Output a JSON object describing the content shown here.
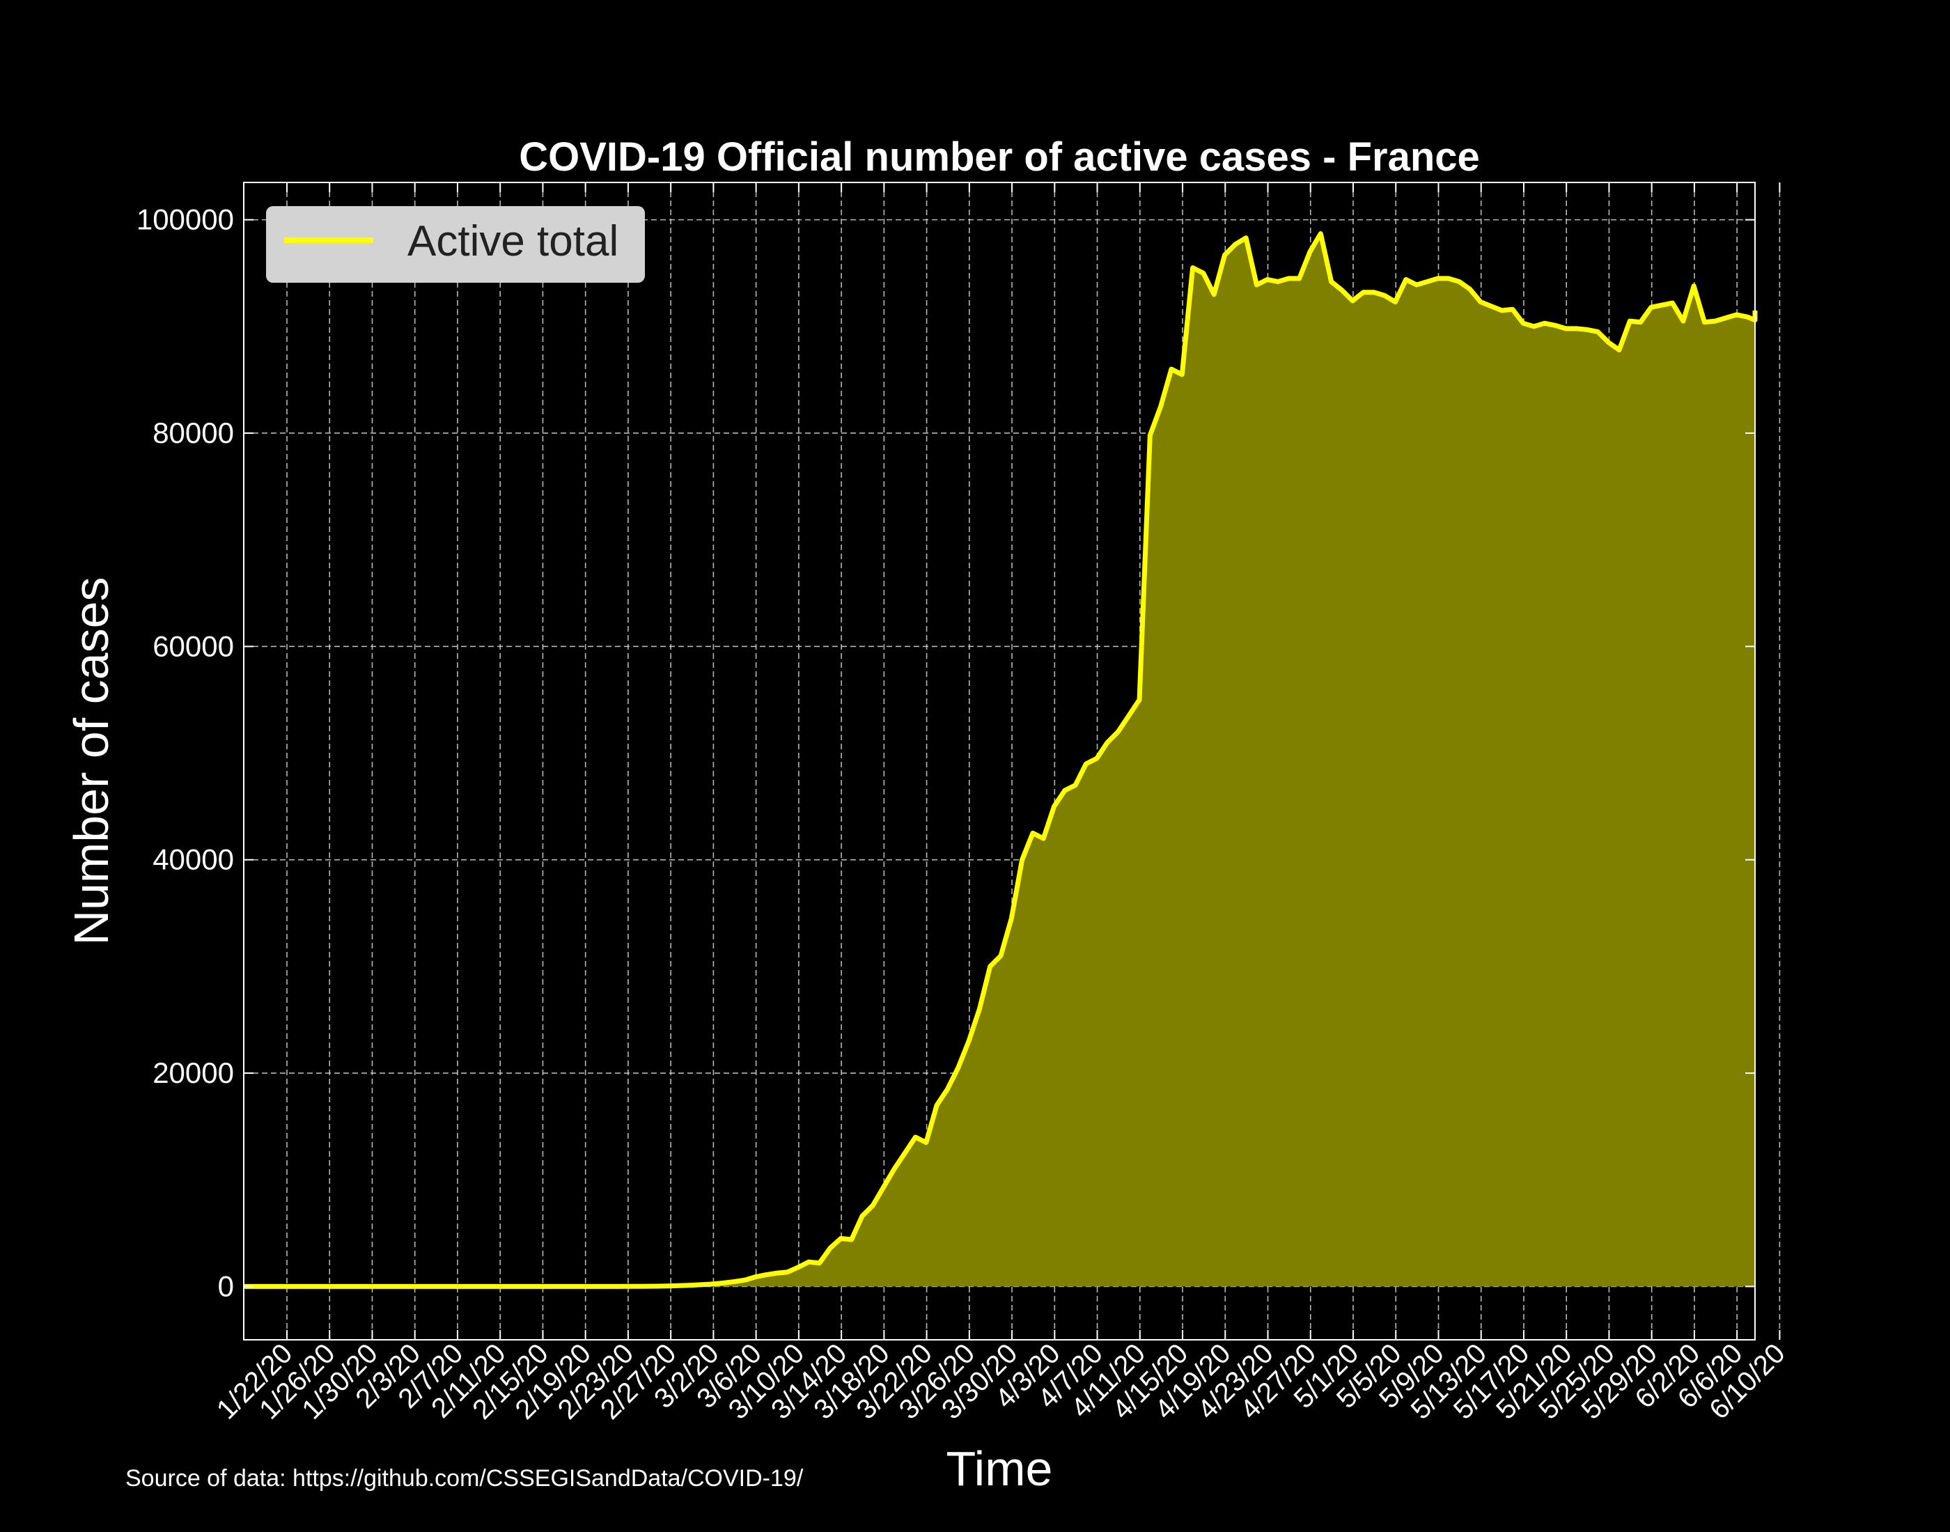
{
  "chart_data": {
    "type": "area",
    "title": "COVID-19 Official number of active cases - France",
    "xlabel": "Time",
    "ylabel": "Number of cases",
    "source_note": "Source of data: https://github.com/CSSEGISandData/COVID-19/",
    "ylim": [
      -5000,
      103500
    ],
    "yticks": [
      0,
      20000,
      40000,
      60000,
      80000,
      100000
    ],
    "ytick_labels": [
      "0",
      "20000",
      "40000",
      "60000",
      "80000",
      "100000"
    ],
    "xticks": [
      "1/22/20",
      "1/26/20",
      "1/30/20",
      "2/3/20",
      "2/7/20",
      "2/11/20",
      "2/15/20",
      "2/19/20",
      "2/23/20",
      "2/27/20",
      "3/2/20",
      "3/6/20",
      "3/10/20",
      "3/14/20",
      "3/18/20",
      "3/22/20",
      "3/26/20",
      "3/30/20",
      "4/3/20",
      "4/7/20",
      "4/11/20",
      "4/15/20",
      "4/19/20",
      "4/23/20",
      "4/27/20",
      "5/1/20",
      "5/5/20",
      "5/9/20",
      "5/13/20",
      "5/17/20",
      "5/21/20",
      "5/25/20",
      "5/29/20",
      "6/2/20",
      "6/6/20",
      "6/10/20"
    ],
    "grid": true,
    "legend_position": "top-left",
    "series": [
      {
        "name": "Active total",
        "color": "#ffff00",
        "fill_color": "#808000",
        "start_date": "1/22/20",
        "end_date": "6/11/20",
        "values": [
          0,
          0,
          2,
          3,
          3,
          3,
          4,
          5,
          5,
          5,
          5,
          5,
          5,
          5,
          5,
          5,
          5,
          5,
          5,
          5,
          5,
          5,
          5,
          5,
          5,
          5,
          5,
          5,
          5,
          5,
          5,
          5,
          5,
          5,
          6,
          6,
          7,
          8,
          20,
          30,
          50,
          80,
          120,
          170,
          230,
          330,
          450,
          600,
          900,
          1100,
          1250,
          1350,
          1800,
          2300,
          2200,
          3600,
          4500,
          4400,
          6600,
          7600,
          9300,
          11000,
          12500,
          14000,
          13500,
          17000,
          18500,
          20500,
          23000,
          26000,
          30000,
          31000,
          34500,
          40000,
          42500,
          42000,
          45000,
          46500,
          47000,
          49000,
          49500,
          51000,
          52000,
          53500,
          55000,
          79800,
          82500,
          86000,
          85500,
          95500,
          95000,
          93000,
          96700,
          97700,
          98300,
          93900,
          94400,
          94200,
          94500,
          94500,
          97000,
          98700,
          94200,
          93400,
          92400,
          93200,
          93200,
          92900,
          92300,
          94400,
          93900,
          94200,
          94500,
          94500,
          94200,
          93500,
          92300,
          91900,
          91500,
          91600,
          90300,
          90000,
          90300,
          90100,
          89800,
          89800,
          89700,
          89500,
          88500,
          87800,
          90500,
          90400,
          91800,
          92000,
          92200,
          90500,
          93800,
          90400,
          90500,
          90800,
          91100,
          90900,
          90600,
          90800,
          90900,
          91200,
          91500
        ]
      }
    ]
  }
}
